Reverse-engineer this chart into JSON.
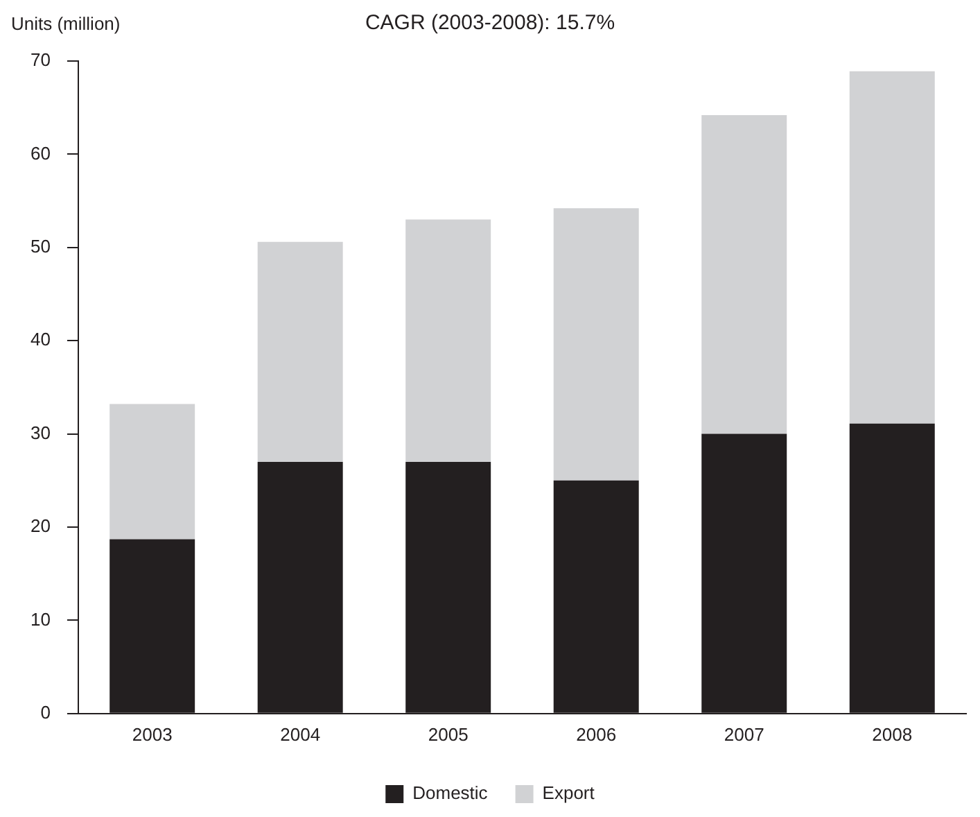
{
  "chart_data": {
    "type": "bar",
    "title": "CAGR (2003-2008): 15.7%",
    "ylabel": "Units (million)",
    "categories": [
      "2003",
      "2004",
      "2005",
      "2006",
      "2007",
      "2008"
    ],
    "series": [
      {
        "name": "Domestic",
        "color": "#231f20",
        "values": [
          18.7,
          27.0,
          27.0,
          25.0,
          30.0,
          31.1
        ]
      },
      {
        "name": "Export",
        "color": "#d1d2d4",
        "values": [
          14.5,
          23.6,
          26.0,
          29.2,
          34.2,
          37.8
        ]
      }
    ],
    "stacked": true,
    "ylim": [
      0,
      70
    ],
    "yticks": [
      0,
      10,
      20,
      30,
      40,
      50,
      60,
      70
    ],
    "grid": false,
    "legend": "bottom"
  }
}
